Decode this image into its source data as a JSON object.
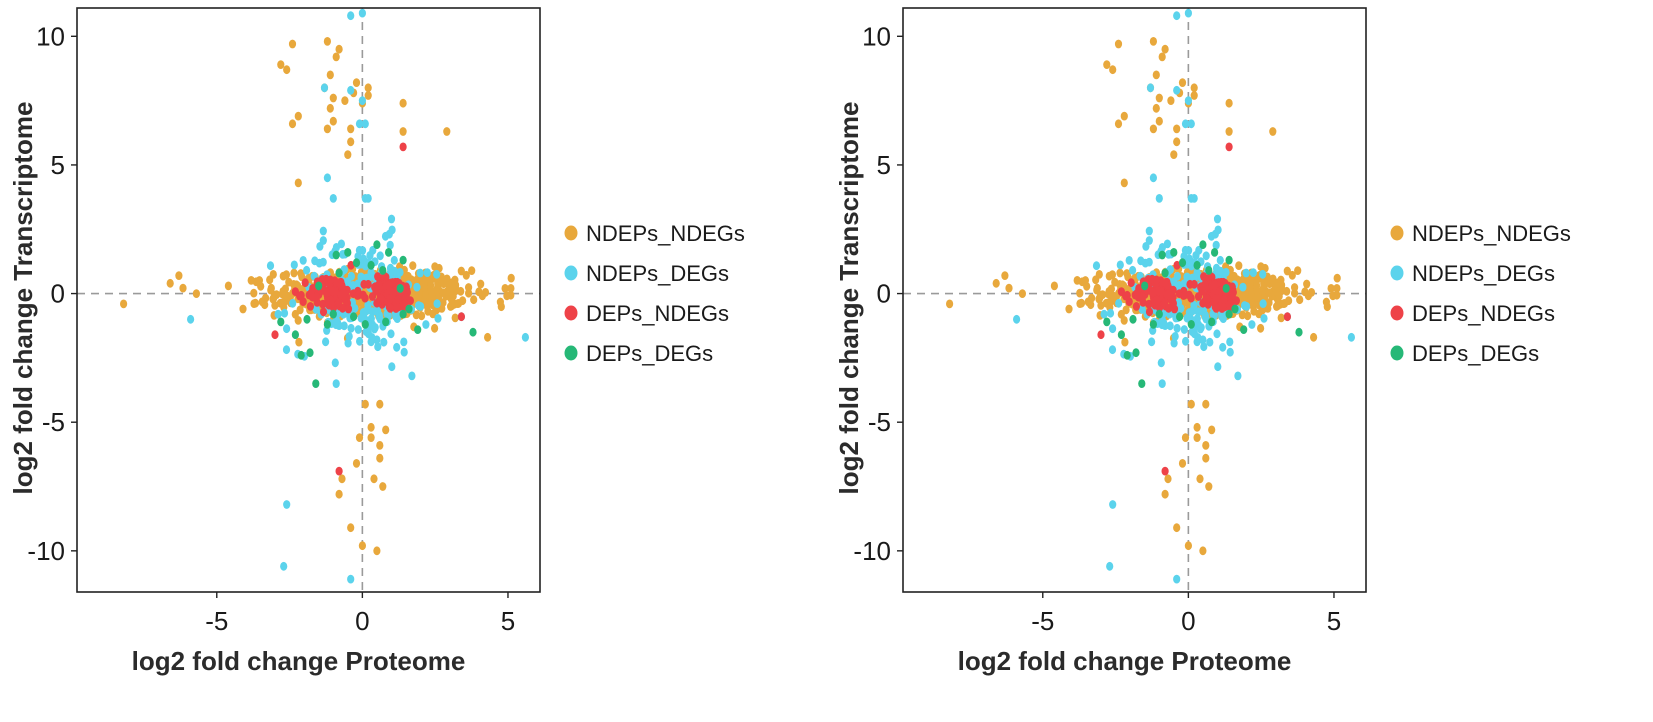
{
  "palette": {
    "NDEPs_NDEGs": "#E8A83C",
    "NDEPs_DEGs": "#5BD3EC",
    "DEPs_NDEGs": "#EE4248",
    "DEPs_DEGs": "#26B877"
  },
  "chart_data": [
    {
      "type": "scatter",
      "title": "",
      "xlabel": "log2 fold change Proteome",
      "ylabel": "log2 fold change Transcriptome",
      "xlim": [
        -9.8,
        6.1
      ],
      "ylim": [
        -11.6,
        11.1
      ],
      "xticks": [
        -5,
        0,
        5
      ],
      "yticks": [
        10,
        5,
        0,
        -5,
        -10
      ],
      "reference_lines": {
        "x": 0,
        "y": 0
      },
      "legend_position": "right",
      "legend": [
        "NDEPs_NDEGs",
        "NDEPs_DEGs",
        "DEPs_NDEGs",
        "DEPs_DEGs"
      ],
      "series": [
        {
          "name": "NDEPs_NDEGs",
          "points": [
            [
              -2.4,
              9.7
            ],
            [
              -2.8,
              8.9
            ],
            [
              -2.6,
              8.7
            ],
            [
              -1.2,
              9.8
            ],
            [
              -0.8,
              9.5
            ],
            [
              -0.9,
              9.2
            ],
            [
              -1.1,
              8.5
            ],
            [
              -1.3,
              8.0
            ],
            [
              -1.0,
              7.6
            ],
            [
              -1.1,
              7.2
            ],
            [
              -0.2,
              8.2
            ],
            [
              -0.3,
              7.8
            ],
            [
              0.0,
              7.4
            ],
            [
              0.2,
              8.0
            ],
            [
              0.2,
              7.7
            ],
            [
              -0.6,
              7.5
            ],
            [
              -2.2,
              6.9
            ],
            [
              -2.4,
              6.6
            ],
            [
              -1.0,
              6.7
            ],
            [
              -1.2,
              6.4
            ],
            [
              -0.4,
              6.4
            ],
            [
              -0.4,
              5.9
            ],
            [
              -0.5,
              5.4
            ],
            [
              1.4,
              7.4
            ],
            [
              1.4,
              6.3
            ],
            [
              2.9,
              6.3
            ],
            [
              -2.2,
              4.3
            ],
            [
              -6.3,
              0.7
            ],
            [
              -6.6,
              0.4
            ],
            [
              -5.7,
              0.0
            ],
            [
              -8.2,
              -0.4
            ],
            [
              -4.1,
              -0.6
            ],
            [
              -4.6,
              0.3
            ],
            [
              4.3,
              -1.7
            ],
            [
              4.9,
              0.2
            ],
            [
              5.1,
              0.2
            ],
            [
              0.1,
              -4.3
            ],
            [
              0.6,
              -4.3
            ],
            [
              0.3,
              -5.2
            ],
            [
              0.8,
              -5.3
            ],
            [
              -0.1,
              -5.6
            ],
            [
              0.3,
              -5.6
            ],
            [
              0.6,
              -5.9
            ],
            [
              0.6,
              -6.4
            ],
            [
              -0.2,
              -6.6
            ],
            [
              0.4,
              -7.2
            ],
            [
              0.7,
              -7.5
            ],
            [
              -0.7,
              -7.2
            ],
            [
              -0.8,
              -7.8
            ],
            [
              -0.4,
              -9.1
            ],
            [
              0.0,
              -9.8
            ],
            [
              0.5,
              -10.0
            ]
          ],
          "cloud": {
            "count": 700,
            "x_center": 0.3,
            "x_sd": 1.6,
            "y_sd": 0.45
          }
        },
        {
          "name": "NDEPs_DEGs",
          "points": [
            [
              -0.4,
              10.8
            ],
            [
              0.0,
              10.9
            ],
            [
              -1.3,
              8.0
            ],
            [
              -0.4,
              7.9
            ],
            [
              0.0,
              7.5
            ],
            [
              0.1,
              6.6
            ],
            [
              -0.1,
              6.6
            ],
            [
              -1.2,
              4.5
            ],
            [
              -1.0,
              3.7
            ],
            [
              0.1,
              3.7
            ],
            [
              0.2,
              3.7
            ],
            [
              1.0,
              2.9
            ],
            [
              -5.9,
              -1.0
            ],
            [
              -2.6,
              -8.2
            ],
            [
              -2.7,
              -10.6
            ],
            [
              -0.4,
              -11.1
            ],
            [
              5.6,
              -1.7
            ],
            [
              3.4,
              -0.9
            ],
            [
              1.7,
              -3.2
            ],
            [
              -0.9,
              -3.5
            ]
          ],
          "cloud": {
            "count": 190,
            "x_center": -0.1,
            "x_sd": 1.2,
            "y_sd": 0.95
          }
        },
        {
          "name": "DEPs_NDEGs",
          "points": [
            [
              1.4,
              5.7
            ],
            [
              -0.8,
              -6.9
            ],
            [
              -3.0,
              -1.6
            ],
            [
              3.4,
              -0.9
            ]
          ],
          "clusters": [
            {
              "count": 100,
              "x_center": -1.05,
              "x_sd": 0.4,
              "y_sd": 0.32
            },
            {
              "count": 100,
              "x_center": 1.0,
              "x_sd": 0.4,
              "y_sd": 0.32
            }
          ]
        },
        {
          "name": "DEPs_DEGs",
          "points": [
            [
              -1.6,
              -3.5
            ],
            [
              -2.1,
              -2.4
            ],
            [
              -1.8,
              -2.3
            ],
            [
              -2.3,
              -1.6
            ],
            [
              -1.2,
              -1.2
            ],
            [
              -1.0,
              -0.8
            ],
            [
              0.8,
              -1.1
            ],
            [
              1.4,
              -0.8
            ],
            [
              1.9,
              -1.4
            ],
            [
              3.8,
              -1.5
            ],
            [
              -0.9,
              1.5
            ],
            [
              -0.5,
              1.6
            ],
            [
              0.5,
              1.9
            ],
            [
              0.9,
              1.6
            ],
            [
              1.4,
              1.3
            ],
            [
              -0.2,
              1.2
            ],
            [
              0.3,
              1.1
            ],
            [
              -2.8,
              -1.1
            ],
            [
              -1.5,
              0.3
            ],
            [
              1.3,
              0.2
            ],
            [
              -0.8,
              0.8
            ],
            [
              0.7,
              0.9
            ],
            [
              -1.9,
              -1.0
            ],
            [
              1.6,
              -0.6
            ],
            [
              -0.3,
              -0.9
            ],
            [
              0.1,
              -1.2
            ]
          ]
        }
      ]
    },
    {
      "type": "scatter",
      "title": "",
      "xlabel": "log2 fold change Proteome",
      "ylabel": "log2 fold change Transcriptome",
      "xlim": [
        -9.8,
        6.1
      ],
      "ylim": [
        -11.6,
        11.1
      ],
      "xticks": [
        -5,
        0,
        5
      ],
      "yticks": [
        10,
        5,
        0,
        -5,
        -10
      ],
      "reference_lines": {
        "x": 0,
        "y": 0
      },
      "legend_position": "right",
      "legend": [
        "NDEPs_NDEGs",
        "NDEPs_DEGs",
        "DEPs_NDEGs",
        "DEPs_DEGs"
      ],
      "series": [
        {
          "name": "NDEPs_NDEGs",
          "points": [
            [
              -2.4,
              9.7
            ],
            [
              -2.8,
              8.9
            ],
            [
              -2.6,
              8.7
            ],
            [
              -1.2,
              9.8
            ],
            [
              -0.8,
              9.5
            ],
            [
              -0.9,
              9.2
            ],
            [
              -1.1,
              8.5
            ],
            [
              -1.3,
              8.0
            ],
            [
              -1.0,
              7.6
            ],
            [
              -1.1,
              7.2
            ],
            [
              -0.2,
              8.2
            ],
            [
              -0.3,
              7.8
            ],
            [
              0.0,
              7.4
            ],
            [
              0.2,
              8.0
            ],
            [
              0.2,
              7.7
            ],
            [
              -0.6,
              7.5
            ],
            [
              -2.2,
              6.9
            ],
            [
              -2.4,
              6.6
            ],
            [
              -1.0,
              6.7
            ],
            [
              -1.2,
              6.4
            ],
            [
              -0.4,
              6.4
            ],
            [
              -0.4,
              5.9
            ],
            [
              -0.5,
              5.4
            ],
            [
              1.4,
              7.4
            ],
            [
              1.4,
              6.3
            ],
            [
              2.9,
              6.3
            ],
            [
              -2.2,
              4.3
            ],
            [
              -6.3,
              0.7
            ],
            [
              -6.6,
              0.4
            ],
            [
              -5.7,
              0.0
            ],
            [
              -8.2,
              -0.4
            ],
            [
              -4.1,
              -0.6
            ],
            [
              -4.6,
              0.3
            ],
            [
              4.3,
              -1.7
            ],
            [
              4.9,
              0.2
            ],
            [
              5.1,
              0.2
            ],
            [
              0.1,
              -4.3
            ],
            [
              0.6,
              -4.3
            ],
            [
              0.3,
              -5.2
            ],
            [
              0.8,
              -5.3
            ],
            [
              -0.1,
              -5.6
            ],
            [
              0.3,
              -5.6
            ],
            [
              0.6,
              -5.9
            ],
            [
              0.6,
              -6.4
            ],
            [
              -0.2,
              -6.6
            ],
            [
              0.4,
              -7.2
            ],
            [
              0.7,
              -7.5
            ],
            [
              -0.7,
              -7.2
            ],
            [
              -0.8,
              -7.8
            ],
            [
              -0.4,
              -9.1
            ],
            [
              0.0,
              -9.8
            ],
            [
              0.5,
              -10.0
            ]
          ],
          "cloud": {
            "count": 700,
            "x_center": 0.3,
            "x_sd": 1.6,
            "y_sd": 0.45
          }
        },
        {
          "name": "NDEPs_DEGs",
          "points": [
            [
              -0.4,
              10.8
            ],
            [
              0.0,
              10.9
            ],
            [
              -1.3,
              8.0
            ],
            [
              -0.4,
              7.9
            ],
            [
              0.0,
              7.5
            ],
            [
              0.1,
              6.6
            ],
            [
              -0.1,
              6.6
            ],
            [
              -1.2,
              4.5
            ],
            [
              -1.0,
              3.7
            ],
            [
              0.1,
              3.7
            ],
            [
              0.2,
              3.7
            ],
            [
              1.0,
              2.9
            ],
            [
              -5.9,
              -1.0
            ],
            [
              -2.6,
              -8.2
            ],
            [
              -2.7,
              -10.6
            ],
            [
              -0.4,
              -11.1
            ],
            [
              5.6,
              -1.7
            ],
            [
              3.4,
              -0.9
            ],
            [
              1.7,
              -3.2
            ],
            [
              -0.9,
              -3.5
            ]
          ],
          "cloud": {
            "count": 190,
            "x_center": -0.1,
            "x_sd": 1.2,
            "y_sd": 0.95
          }
        },
        {
          "name": "DEPs_NDEGs",
          "points": [
            [
              1.4,
              5.7
            ],
            [
              -0.8,
              -6.9
            ],
            [
              -3.0,
              -1.6
            ],
            [
              3.4,
              -0.9
            ]
          ],
          "clusters": [
            {
              "count": 100,
              "x_center": -1.05,
              "x_sd": 0.4,
              "y_sd": 0.32
            },
            {
              "count": 100,
              "x_center": 1.0,
              "x_sd": 0.4,
              "y_sd": 0.32
            }
          ]
        },
        {
          "name": "DEPs_DEGs",
          "points": [
            [
              -1.6,
              -3.5
            ],
            [
              -2.1,
              -2.4
            ],
            [
              -1.8,
              -2.3
            ],
            [
              -2.3,
              -1.6
            ],
            [
              -1.2,
              -1.2
            ],
            [
              -1.0,
              -0.8
            ],
            [
              0.8,
              -1.1
            ],
            [
              1.4,
              -0.8
            ],
            [
              1.9,
              -1.4
            ],
            [
              3.8,
              -1.5
            ],
            [
              -0.9,
              1.5
            ],
            [
              -0.5,
              1.6
            ],
            [
              0.5,
              1.9
            ],
            [
              0.9,
              1.6
            ],
            [
              1.4,
              1.3
            ],
            [
              -0.2,
              1.2
            ],
            [
              0.3,
              1.1
            ],
            [
              -2.8,
              -1.1
            ],
            [
              -1.5,
              0.3
            ],
            [
              1.3,
              0.2
            ],
            [
              -0.8,
              0.8
            ],
            [
              0.7,
              0.9
            ],
            [
              -1.9,
              -1.0
            ],
            [
              1.6,
              -0.6
            ],
            [
              -0.3,
              -0.9
            ],
            [
              0.1,
              -1.2
            ]
          ]
        }
      ]
    }
  ]
}
